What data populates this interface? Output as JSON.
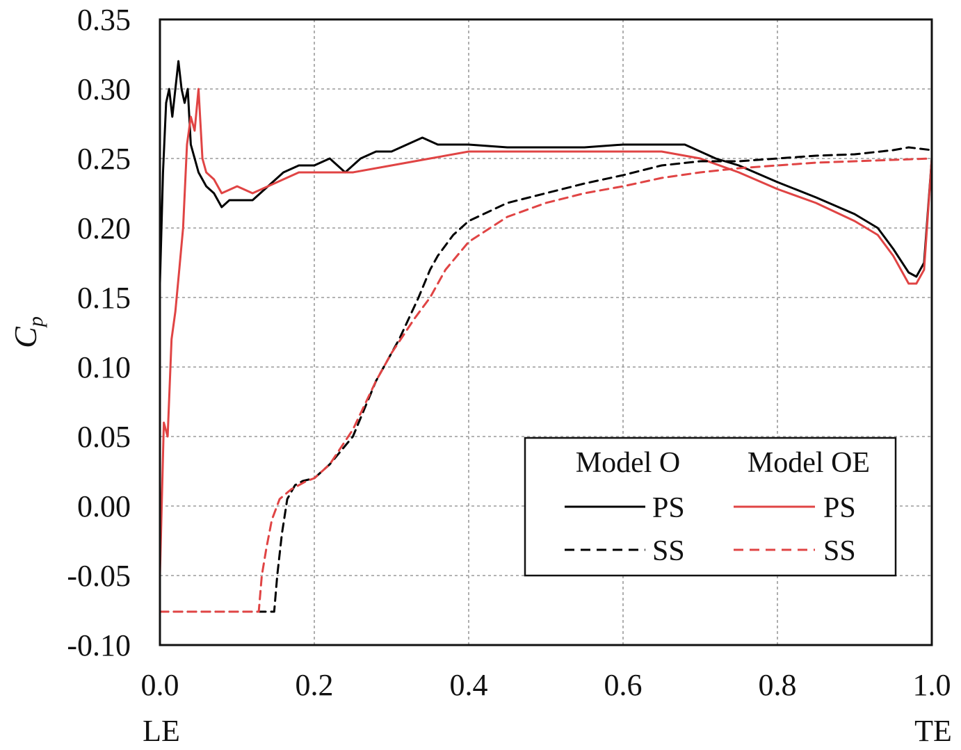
{
  "chart_data": {
    "type": "line",
    "ylabel_main": "C",
    "ylabel_sub": "p",
    "xlim": [
      0,
      1
    ],
    "ylim": [
      -0.1,
      0.35
    ],
    "grid": true,
    "x_ticks": [
      {
        "value": 0.0,
        "label": "0.0"
      },
      {
        "value": 0.2,
        "label": "0.2"
      },
      {
        "value": 0.4,
        "label": "0.4"
      },
      {
        "value": 0.6,
        "label": "0.6"
      },
      {
        "value": 0.8,
        "label": "0.8"
      },
      {
        "value": 1.0,
        "label": "1.0"
      }
    ],
    "y_ticks": [
      {
        "value": 0.35,
        "label": "0.35"
      },
      {
        "value": 0.3,
        "label": "0.30"
      },
      {
        "value": 0.25,
        "label": "0.25"
      },
      {
        "value": 0.2,
        "label": "0.20"
      },
      {
        "value": 0.15,
        "label": "0.15"
      },
      {
        "value": 0.1,
        "label": "0.10"
      },
      {
        "value": 0.05,
        "label": "0.05"
      },
      {
        "value": 0.0,
        "label": "0.00"
      },
      {
        "value": -0.05,
        "label": "-0.05"
      },
      {
        "value": -0.1,
        "label": "-0.10"
      }
    ],
    "x_end_labels": {
      "left": "LE",
      "right": "TE"
    },
    "legend": {
      "placement": "bottom-right",
      "groups": [
        {
          "title": "Model O",
          "color": "#000000",
          "entries": [
            {
              "label": "PS",
              "style": "solid"
            },
            {
              "label": "SS",
              "style": "dashed"
            }
          ]
        },
        {
          "title": "Model OE",
          "color": "#e04444",
          "entries": [
            {
              "label": "PS",
              "style": "solid"
            },
            {
              "label": "SS",
              "style": "dashed"
            }
          ]
        }
      ]
    },
    "series": [
      {
        "name": "Model O PS",
        "color": "#000000",
        "style": "solid",
        "x": [
          0.0,
          0.004,
          0.008,
          0.012,
          0.016,
          0.02,
          0.024,
          0.028,
          0.032,
          0.036,
          0.04,
          0.05,
          0.06,
          0.07,
          0.08,
          0.09,
          0.1,
          0.12,
          0.14,
          0.16,
          0.18,
          0.2,
          0.22,
          0.24,
          0.26,
          0.28,
          0.3,
          0.32,
          0.34,
          0.36,
          0.38,
          0.4,
          0.45,
          0.5,
          0.55,
          0.6,
          0.65,
          0.68,
          0.7,
          0.72,
          0.75,
          0.8,
          0.85,
          0.9,
          0.93,
          0.95,
          0.97,
          0.98,
          0.99,
          1.0
        ],
        "y": [
          0.16,
          0.24,
          0.29,
          0.3,
          0.28,
          0.3,
          0.32,
          0.3,
          0.29,
          0.3,
          0.26,
          0.24,
          0.23,
          0.225,
          0.215,
          0.22,
          0.22,
          0.22,
          0.23,
          0.24,
          0.245,
          0.245,
          0.25,
          0.24,
          0.25,
          0.255,
          0.255,
          0.26,
          0.265,
          0.26,
          0.26,
          0.26,
          0.258,
          0.258,
          0.258,
          0.26,
          0.26,
          0.26,
          0.255,
          0.25,
          0.245,
          0.233,
          0.222,
          0.21,
          0.2,
          0.185,
          0.168,
          0.165,
          0.175,
          0.25
        ]
      },
      {
        "name": "Model OE PS",
        "color": "#e04444",
        "style": "solid",
        "x": [
          0.0,
          0.005,
          0.01,
          0.015,
          0.02,
          0.025,
          0.03,
          0.035,
          0.04,
          0.045,
          0.05,
          0.055,
          0.06,
          0.07,
          0.08,
          0.1,
          0.12,
          0.14,
          0.16,
          0.18,
          0.2,
          0.25,
          0.3,
          0.35,
          0.4,
          0.45,
          0.5,
          0.55,
          0.6,
          0.65,
          0.7,
          0.75,
          0.8,
          0.85,
          0.9,
          0.93,
          0.95,
          0.97,
          0.98,
          0.99,
          1.0
        ],
        "y": [
          -0.05,
          0.06,
          0.05,
          0.12,
          0.14,
          0.17,
          0.2,
          0.26,
          0.28,
          0.27,
          0.3,
          0.25,
          0.24,
          0.235,
          0.225,
          0.23,
          0.225,
          0.23,
          0.235,
          0.24,
          0.24,
          0.24,
          0.245,
          0.25,
          0.255,
          0.255,
          0.255,
          0.255,
          0.255,
          0.255,
          0.25,
          0.24,
          0.228,
          0.218,
          0.205,
          0.195,
          0.18,
          0.16,
          0.16,
          0.17,
          0.25
        ]
      },
      {
        "name": "Model O SS",
        "color": "#000000",
        "style": "dashed",
        "x": [
          0.0,
          0.05,
          0.1,
          0.148,
          0.152,
          0.158,
          0.165,
          0.175,
          0.185,
          0.2,
          0.22,
          0.25,
          0.28,
          0.31,
          0.335,
          0.35,
          0.36,
          0.38,
          0.4,
          0.45,
          0.5,
          0.55,
          0.6,
          0.65,
          0.7,
          0.75,
          0.8,
          0.85,
          0.9,
          0.95,
          0.97,
          1.0
        ],
        "y": [
          -0.076,
          -0.076,
          -0.076,
          -0.076,
          -0.05,
          -0.02,
          0.005,
          0.015,
          0.018,
          0.02,
          0.03,
          0.05,
          0.09,
          0.12,
          0.15,
          0.17,
          0.18,
          0.195,
          0.205,
          0.218,
          0.225,
          0.232,
          0.238,
          0.245,
          0.248,
          0.248,
          0.25,
          0.252,
          0.253,
          0.256,
          0.258,
          0.256
        ]
      },
      {
        "name": "Model OE SS",
        "color": "#e04444",
        "style": "dashed",
        "x": [
          0.0,
          0.05,
          0.1,
          0.128,
          0.132,
          0.138,
          0.145,
          0.155,
          0.17,
          0.19,
          0.2,
          0.22,
          0.25,
          0.28,
          0.3,
          0.33,
          0.35,
          0.37,
          0.4,
          0.45,
          0.5,
          0.55,
          0.6,
          0.65,
          0.7,
          0.75,
          0.8,
          0.85,
          0.9,
          0.95,
          1.0
        ],
        "y": [
          -0.076,
          -0.076,
          -0.076,
          -0.076,
          -0.05,
          -0.03,
          -0.01,
          0.005,
          0.012,
          0.018,
          0.02,
          0.03,
          0.055,
          0.09,
          0.11,
          0.135,
          0.15,
          0.17,
          0.19,
          0.208,
          0.218,
          0.225,
          0.23,
          0.236,
          0.24,
          0.243,
          0.245,
          0.247,
          0.248,
          0.249,
          0.25
        ]
      }
    ]
  }
}
